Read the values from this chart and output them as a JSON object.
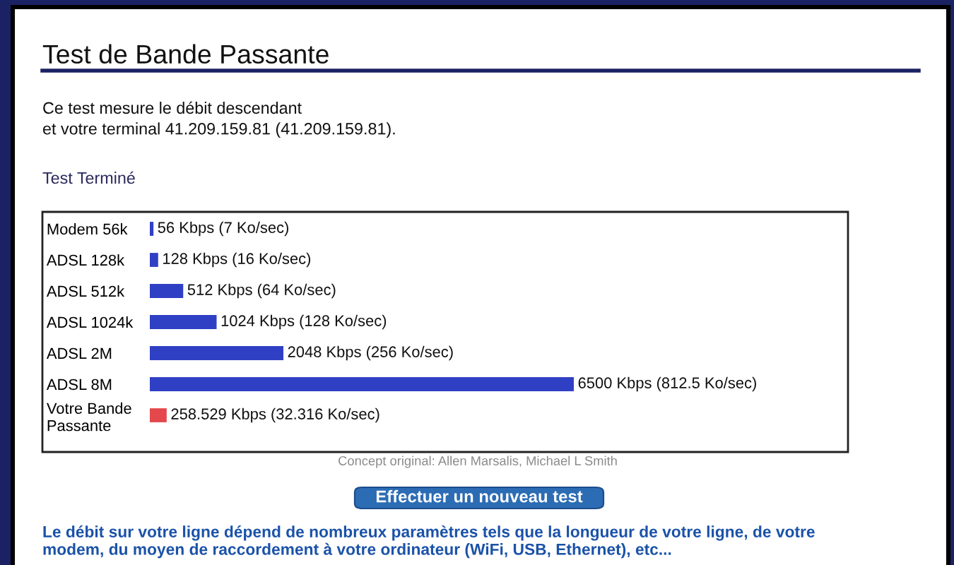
{
  "chart_data": {
    "type": "bar",
    "orientation": "horizontal",
    "title": "Test de Bande Passante",
    "subtitle": "Ce test mesure le débit descendant\net votre terminal 41.209.159.81 (41.209.159.81).",
    "categories": [
      "Modem 56k",
      "ADSL 128k",
      "ADSL 512k",
      "ADSL 1024k",
      "ADSL 2M",
      "ADSL 8M",
      "Votre Bande\nPassante"
    ],
    "values": [
      56,
      128,
      512,
      1024,
      2048,
      6500,
      258.529
    ],
    "colors": [
      "#3040c4",
      "#3040c4",
      "#3040c4",
      "#3040c4",
      "#3040c4",
      "#3040c4",
      "#e4484c"
    ],
    "value_labels": [
      "56 Kbps (7 Ko/sec)",
      "128 Kbps (16 Ko/sec)",
      "512 Kbps (64 Ko/sec)",
      "1024 Kbps (128 Ko/sec)",
      "2048 Kbps (256 Ko/sec)",
      "6500 Kbps (812.5 Ko/sec)",
      "258.529 Kbps (32.316 Ko/sec)"
    ],
    "tick_labels": "y",
    "annotations": [
      "Test Terminé",
      "Concept original: Allen Marsalis, Michael L Smith",
      "Effectuer un nouveau test",
      "Le débit sur votre ligne dépend de nombreux paramètres tels que la longueur de votre ligne, de votre\nmodem, du moyen de raccordement à votre ordinateur (WiFi, USB, Ethernet), etc..."
    ]
  }
}
